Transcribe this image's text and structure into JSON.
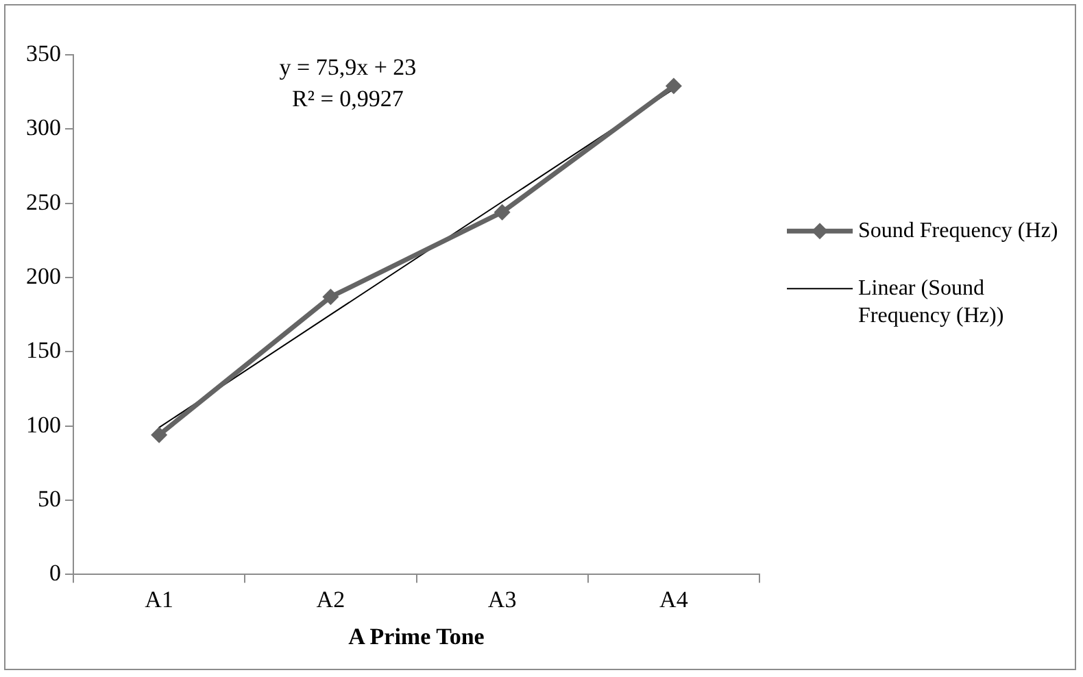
{
  "chart_data": {
    "type": "line",
    "xlabel": "A Prime Tone",
    "categories": [
      "A1",
      "A2",
      "A3",
      "A4"
    ],
    "series": [
      {
        "name": "Sound Frequency (Hz)",
        "color": "#646464",
        "values": [
          94,
          187,
          244,
          329
        ],
        "marker": "diamond"
      },
      {
        "name": "Linear (Sound Frequency (Hz))",
        "color": "#000000",
        "values": [
          99,
          175,
          251,
          327
        ],
        "marker": "none"
      }
    ],
    "ylim": [
      0,
      350
    ],
    "yticks": [
      0,
      50,
      100,
      150,
      200,
      250,
      300,
      350
    ],
    "grid": false,
    "legend": "right",
    "annotations": [
      "y = 75,9x + 23",
      "R² = 0,9927"
    ]
  }
}
